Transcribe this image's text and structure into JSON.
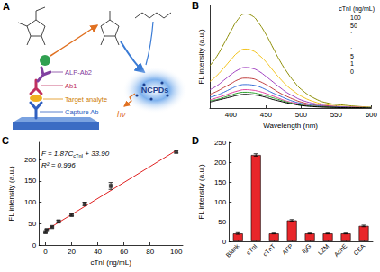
{
  "diagram": {
    "panel": "A",
    "labels": {
      "enzyme_antibody": "ALP-Ab2",
      "detection_antibody": "Ab1",
      "analyte": "Target analyte",
      "capture_antibody": "Capture Ab",
      "product": "NCPDs",
      "light": "hν"
    }
  },
  "chart_data": [
    {
      "panel": "B",
      "type": "line",
      "x_label": "Wavelength (nm)",
      "y_label": "FL intensity (a.u.)",
      "legend_title": "cTnI (ng/mL)",
      "x": [
        370,
        380,
        390,
        400,
        410,
        420,
        430,
        440,
        450,
        460,
        470,
        480,
        490,
        500,
        520,
        540,
        560,
        580,
        600
      ],
      "series": [
        {
          "name": "100",
          "color": "#8b8b00",
          "values": [
            99,
            121,
            150,
            180,
            207,
            220,
            216,
            198,
            172,
            141,
            110,
            84,
            62,
            44,
            22,
            11,
            7,
            4,
            2
          ]
        },
        {
          "name": "50",
          "color": "#f2c21b",
          "values": [
            62,
            76,
            94,
            113,
            130,
            138,
            135,
            124,
            108,
            88,
            69,
            52,
            39,
            28,
            14,
            7,
            4,
            3,
            1
          ]
        },
        {
          "name": "·",
          "color": "#a040c0",
          "values": [
            43,
            52,
            65,
            78,
            89,
            95,
            93,
            86,
            74,
            61,
            48,
            36,
            27,
            19,
            10,
            5,
            3,
            2,
            1
          ]
        },
        {
          "name": "·",
          "color": "#c04040",
          "values": [
            32,
            39,
            48,
            57,
            66,
            70,
            69,
            63,
            55,
            45,
            35,
            27,
            20,
            14,
            7,
            4,
            2,
            1,
            1
          ]
        },
        {
          "name": "·",
          "color": "#3a6fd8",
          "values": [
            25,
            30,
            37,
            45,
            52,
            55,
            54,
            50,
            43,
            35,
            28,
            21,
            15,
            11,
            6,
            3,
            2,
            1,
            1
          ]
        },
        {
          "name": "5",
          "color": "#e040a0",
          "values": [
            19,
            24,
            29,
            35,
            40,
            43,
            42,
            39,
            34,
            28,
            22,
            16,
            12,
            9,
            4,
            2,
            1,
            1,
            0
          ]
        },
        {
          "name": "1",
          "color": "#2ca02c",
          "values": [
            17,
            20,
            25,
            30,
            35,
            37,
            36,
            33,
            29,
            24,
            19,
            14,
            10,
            7,
            4,
            2,
            1,
            1,
            0
          ]
        },
        {
          "name": "0",
          "color": "#000000",
          "values": [
            14,
            18,
            22,
            26,
            30,
            32,
            31,
            29,
            25,
            20,
            16,
            12,
            9,
            6,
            3,
            2,
            1,
            1,
            0
          ]
        }
      ],
      "xlim": [
        370,
        600
      ],
      "xticks": [
        400,
        450,
        500,
        550,
        600
      ],
      "ylim": [
        0,
        240
      ],
      "tick_labels": "x"
    },
    {
      "panel": "C",
      "type": "scatter",
      "x_label": "cTnI (ng/mL)",
      "y_label": "FL intensity (a.u.)",
      "x": [
        0,
        1,
        5,
        10,
        20,
        30,
        50,
        100
      ],
      "values": [
        30,
        35,
        42,
        55,
        70,
        96,
        138,
        218
      ],
      "errors": [
        2,
        2,
        2,
        3,
        2,
        4,
        8,
        3
      ],
      "color": "#222222",
      "marker": "square",
      "fit": {
        "x": [
          0,
          100
        ],
        "values": [
          33.9,
          220.9
        ],
        "color": "#e02020"
      },
      "equation": [
        "F = 1.87C",
        "cTnI",
        " + 33.90"
      ],
      "r2": "R² = 0.996",
      "xlim": [
        -5,
        105
      ],
      "xticks": [
        0,
        20,
        40,
        60,
        80,
        100
      ],
      "ylim": [
        0,
        240
      ],
      "yticks": [
        0,
        50,
        100,
        150,
        200
      ]
    },
    {
      "panel": "D",
      "type": "bar",
      "y_label": "FL intensity (a.u.)",
      "categories": [
        "Blank",
        "cTnI",
        "cTnT",
        "AFP",
        "IgG",
        "LZM",
        "AchE",
        "CEA"
      ],
      "values": [
        20,
        218,
        20,
        53,
        20,
        20,
        20,
        39
      ],
      "errors": [
        2,
        3,
        1,
        2,
        1,
        1,
        1,
        2
      ],
      "color": "#e8262a",
      "ylim": [
        0,
        250
      ],
      "yticks": [
        0,
        50,
        100,
        150,
        200,
        250
      ]
    }
  ]
}
